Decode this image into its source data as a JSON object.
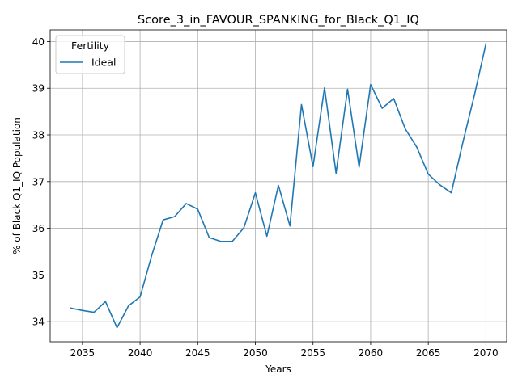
{
  "chart_data": {
    "type": "line",
    "title": "Score_3_in_FAVOUR_SPANKING_for_Black_Q1_IQ",
    "xlabel": "Years",
    "ylabel": "% of Black Q1_IQ Population",
    "xlim": [
      2032.2,
      2071.8
    ],
    "ylim": [
      33.57,
      40.25
    ],
    "x_ticks": [
      2035,
      2040,
      2045,
      2050,
      2055,
      2060,
      2065,
      2070
    ],
    "y_ticks": [
      34,
      35,
      36,
      37,
      38,
      39,
      40
    ],
    "grid": true,
    "legend": {
      "title": "Fertility",
      "placement": "top-left"
    },
    "series": [
      {
        "name": "Ideal",
        "color": "#1f77b4",
        "x": [
          2034,
          2035,
          2036,
          2037,
          2038,
          2039,
          2040,
          2041,
          2042,
          2043,
          2044,
          2045,
          2046,
          2047,
          2048,
          2049,
          2050,
          2051,
          2052,
          2053,
          2054,
          2055,
          2056,
          2057,
          2058,
          2059,
          2060,
          2061,
          2062,
          2063,
          2064,
          2065,
          2066,
          2067,
          2068,
          2069,
          2070
        ],
        "y": [
          34.29,
          34.24,
          34.2,
          34.43,
          33.87,
          34.34,
          34.53,
          35.41,
          36.18,
          36.25,
          36.53,
          36.41,
          35.8,
          35.72,
          35.72,
          36.01,
          36.76,
          35.83,
          36.92,
          36.05,
          38.65,
          37.32,
          39.01,
          37.18,
          38.98,
          37.31,
          39.08,
          38.57,
          38.78,
          38.13,
          37.74,
          37.16,
          36.93,
          36.76,
          37.84,
          38.85,
          39.95
        ]
      }
    ]
  }
}
